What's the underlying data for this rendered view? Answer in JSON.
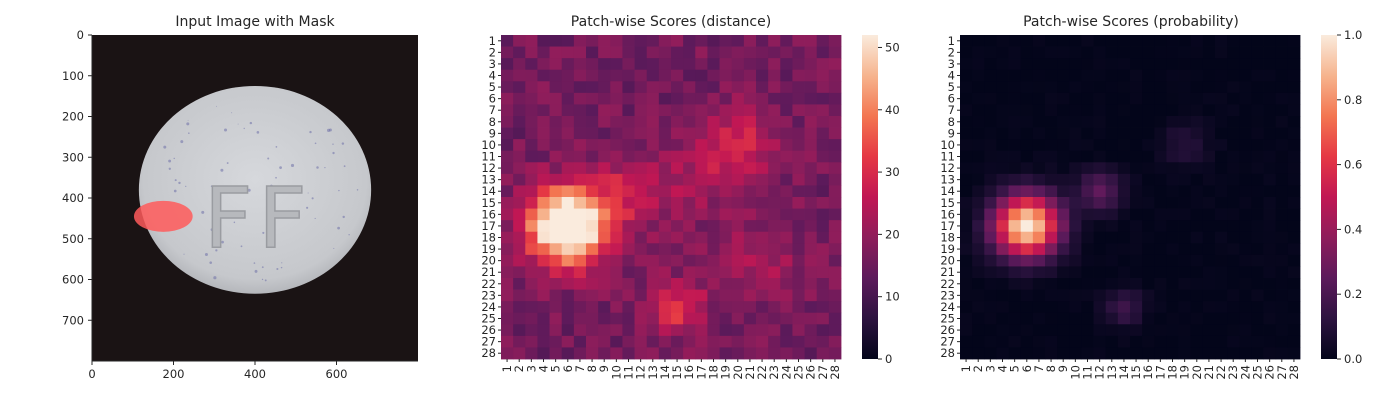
{
  "chart_data": [
    {
      "type": "image",
      "title": "Input Image with Mask",
      "x_ticks": [
        0,
        200,
        400,
        600
      ],
      "y_ticks": [
        0,
        100,
        200,
        300,
        400,
        500,
        600,
        700
      ],
      "xlim": [
        0,
        800
      ],
      "ylim": [
        800,
        0
      ],
      "image": {
        "background_color": "#1a1314",
        "pill": {
          "cx": 400,
          "cy": 380,
          "rx": 285,
          "ry": 255,
          "color": "#c9ccd0"
        },
        "embossed_text": "FF",
        "mask": {
          "cx": 175,
          "cy": 445,
          "rx": 72,
          "ry": 38,
          "color": "#ff5a5a"
        }
      }
    },
    {
      "type": "heatmap",
      "title": "Patch-wise Scores (distance)",
      "rows": 28,
      "cols": 28,
      "tick_labels": [
        "1",
        "2",
        "3",
        "4",
        "5",
        "6",
        "7",
        "8",
        "9",
        "10",
        "11",
        "12",
        "13",
        "14",
        "15",
        "16",
        "17",
        "18",
        "19",
        "20",
        "21",
        "22",
        "23",
        "24",
        "25",
        "26",
        "27",
        "28"
      ],
      "colormap": "rocket",
      "colorbar": {
        "vmin": 0,
        "vmax": 52,
        "ticks": [
          0,
          10,
          20,
          30,
          40,
          50
        ]
      },
      "baseline": 16,
      "hotspots": [
        {
          "row": 17,
          "col": 6,
          "peak": 50,
          "sigma": 2.3
        },
        {
          "row": 14,
          "col": 11,
          "peak": 10,
          "sigma": 2.0
        },
        {
          "row": 10,
          "col": 20,
          "peak": 13,
          "sigma": 2.2
        },
        {
          "row": 24,
          "col": 15,
          "peak": 16,
          "sigma": 1.6
        },
        {
          "row": 20,
          "col": 22,
          "peak": 6,
          "sigma": 2.5
        },
        {
          "row": 13,
          "col": 16,
          "peak": 5,
          "sigma": 3.0
        }
      ],
      "noise": 4
    },
    {
      "type": "heatmap",
      "title": "Patch-wise Scores (probability)",
      "rows": 28,
      "cols": 28,
      "tick_labels": [
        "1",
        "2",
        "3",
        "4",
        "5",
        "6",
        "7",
        "8",
        "9",
        "10",
        "11",
        "12",
        "13",
        "14",
        "15",
        "16",
        "17",
        "18",
        "19",
        "20",
        "21",
        "22",
        "23",
        "24",
        "25",
        "26",
        "27",
        "28"
      ],
      "colormap": "rocket",
      "colorbar": {
        "vmin": 0,
        "vmax": 1,
        "ticks": [
          0.0,
          0.2,
          0.4,
          0.6,
          0.8,
          1.0
        ]
      },
      "baseline": 0.0,
      "hotspots": [
        {
          "row": 17,
          "col": 6,
          "peak": 1.0,
          "sigma": 1.9
        },
        {
          "row": 14,
          "col": 12,
          "peak": 0.25,
          "sigma": 1.3
        },
        {
          "row": 24,
          "col": 14,
          "peak": 0.18,
          "sigma": 1.1
        },
        {
          "row": 10,
          "col": 19,
          "peak": 0.1,
          "sigma": 1.4
        }
      ],
      "noise": 0.015,
      "clip": [
        0,
        1
      ]
    }
  ]
}
